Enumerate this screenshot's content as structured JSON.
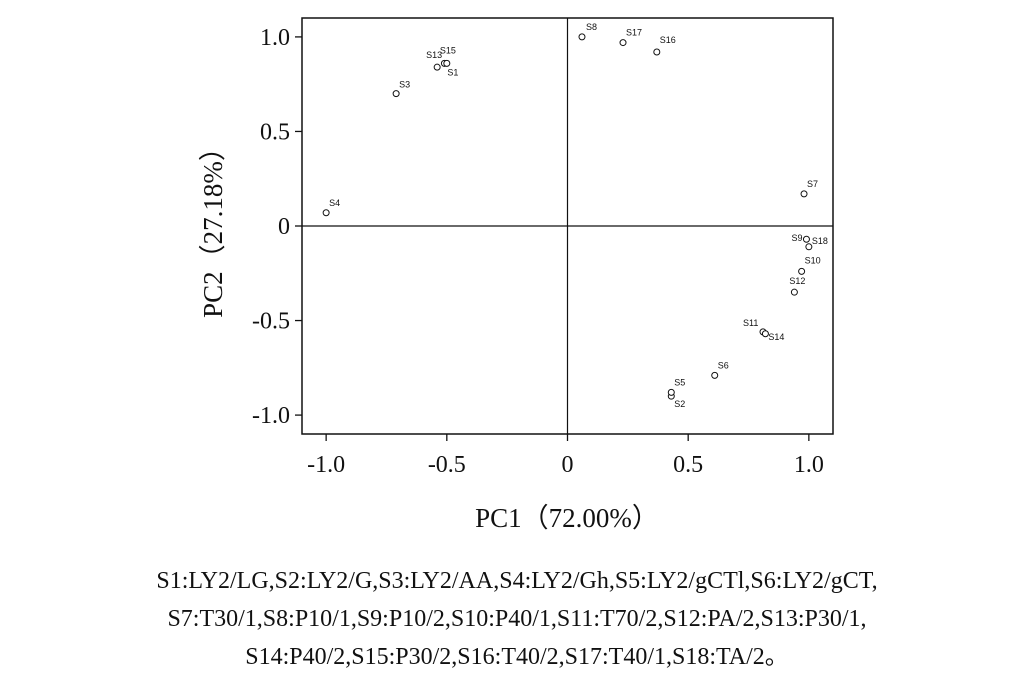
{
  "chart_data": {
    "type": "scatter",
    "xlabel": "PC1（72.00%）",
    "ylabel": "PC2（27.18%）",
    "xlim": [
      -1.1,
      1.1
    ],
    "ylim": [
      -1.1,
      1.1
    ],
    "xticks": [
      -1.0,
      -0.5,
      0,
      0.5,
      1.0
    ],
    "xtick_labels": [
      "-1.0",
      "-0.5",
      "0",
      "0.5",
      "1.0"
    ],
    "yticks": [
      1.0,
      0.5,
      0,
      -0.5,
      -1.0
    ],
    "ytick_labels": [
      "1.0",
      "0.5",
      "0",
      "-0.5",
      "-1.0"
    ],
    "grid": false,
    "reference_lines": {
      "x": 0,
      "y": 0
    },
    "points": [
      {
        "label": "S1",
        "x": -0.51,
        "y": 0.86
      },
      {
        "label": "S2",
        "x": 0.43,
        "y": -0.9
      },
      {
        "label": "S3",
        "x": -0.71,
        "y": 0.7
      },
      {
        "label": "S4",
        "x": -1.0,
        "y": 0.07
      },
      {
        "label": "S5",
        "x": 0.43,
        "y": -0.88
      },
      {
        "label": "S6",
        "x": 0.61,
        "y": -0.79
      },
      {
        "label": "S7",
        "x": 0.98,
        "y": 0.17
      },
      {
        "label": "S8",
        "x": 0.06,
        "y": 1.0
      },
      {
        "label": "S9",
        "x": 0.99,
        "y": -0.07
      },
      {
        "label": "S10",
        "x": 0.97,
        "y": -0.24
      },
      {
        "label": "S11",
        "x": 0.81,
        "y": -0.56
      },
      {
        "label": "S12",
        "x": 0.94,
        "y": -0.35
      },
      {
        "label": "S13",
        "x": -0.54,
        "y": 0.84
      },
      {
        "label": "S14",
        "x": 0.82,
        "y": -0.57
      },
      {
        "label": "S15",
        "x": -0.5,
        "y": 0.86
      },
      {
        "label": "S16",
        "x": 0.37,
        "y": 0.92
      },
      {
        "label": "S17",
        "x": 0.23,
        "y": 0.97
      },
      {
        "label": "S18",
        "x": 1.0,
        "y": -0.11
      }
    ]
  },
  "caption_lines": [
    "S1:LY2/LG,S2:LY2/G,S3:LY2/AA,S4:LY2/Gh,S5:LY2/gCTl,S6:LY2/gCT,",
    "S7:T30/1,S8:P10/1,S9:P10/2,S10:P40/1,S11:T70/2,S12:PA/2,S13:P30/1,",
    "S14:P40/2,S15:P30/2,S16:T40/2,S17:T40/1,S18:TA/2。"
  ]
}
